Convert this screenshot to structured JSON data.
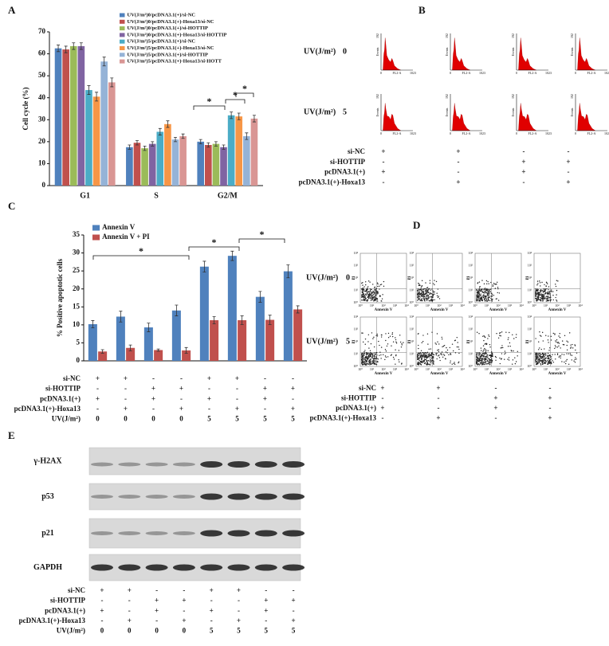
{
  "chart_data": [
    {
      "type": "bar",
      "panel": "A",
      "y_label": "Cell cycle (%)",
      "categories": [
        "G1",
        "S",
        "G2/M"
      ],
      "ylim": [
        0,
        70
      ],
      "yticks": [
        0,
        10,
        20,
        30,
        40,
        50,
        60,
        70
      ],
      "series": [
        {
          "name": "UV(J/m²)0/pcDNA3.1(+)/si-NC",
          "color": "#4f81bd",
          "values": [
            62.5,
            17.5,
            20
          ],
          "errors": [
            1.5,
            1,
            1
          ]
        },
        {
          "name": "UV(J/m²)0/pcDNA3.1(+)-Hoxa13/si-NC",
          "color": "#c0504d",
          "values": [
            62,
            19.5,
            18.5
          ],
          "errors": [
            1.5,
            1,
            1
          ]
        },
        {
          "name": "UV(J/m²)0/pcDNA3.1(+)/si-HOTTIP",
          "color": "#9bbb59",
          "values": [
            63.5,
            17,
            19
          ],
          "errors": [
            1.5,
            1,
            1
          ]
        },
        {
          "name": "UV(J/m²)0/pcDNA3.1(+)-Hoxa13/si-HOTTIP",
          "color": "#8064a2",
          "values": [
            63.5,
            19,
            17.5
          ],
          "errors": [
            1.5,
            1,
            1
          ]
        },
        {
          "name": "UV(J/m²)5/pcDNA3.1(+)/si-NC",
          "color": "#4bacc6",
          "values": [
            43.5,
            24.5,
            32
          ],
          "errors": [
            2,
            1.5,
            1.5
          ]
        },
        {
          "name": "UV(J/m²)5/pcDNA3.1(+)-Hoxa13/si-NC",
          "color": "#f79646",
          "values": [
            40.5,
            28,
            31.5
          ],
          "errors": [
            2,
            1.5,
            1.5
          ]
        },
        {
          "name": "UV(J/m²)5/pcDNA3.1(+)/si-HOTTIP",
          "color": "#95b3d7",
          "values": [
            56.5,
            21,
            22.5
          ],
          "errors": [
            2,
            1,
            1.5
          ]
        },
        {
          "name": "UV(J/m²)5/pcDNA3.1(+)-Hoxa13/si-HOTT",
          "color": "#d99694",
          "values": [
            47,
            22.5,
            30.5
          ],
          "errors": [
            2,
            1,
            1.5
          ]
        }
      ],
      "annotations": [
        "*",
        "*",
        "*"
      ]
    },
    {
      "type": "bar",
      "panel": "C",
      "y_label": "% Positive apoptotic cells",
      "categories": [
        null,
        null,
        null,
        null,
        null,
        null,
        null,
        null
      ],
      "ylim": [
        0,
        35
      ],
      "yticks": [
        0,
        5,
        10,
        15,
        20,
        25,
        30,
        35
      ],
      "series": [
        {
          "name": "Annexin V",
          "color": "#4f81bd",
          "values": [
            10.2,
            12.3,
            9.3,
            14,
            26.2,
            29.2,
            17.8,
            24.9
          ],
          "errors": [
            1,
            1.5,
            1.2,
            1.5,
            1.5,
            1.3,
            1.5,
            1.8
          ]
        },
        {
          "name": "Annexin V + PI",
          "color": "#c0504d",
          "values": [
            2.6,
            3.6,
            3,
            2.9,
            11.3,
            11.3,
            11.4,
            14.3
          ],
          "errors": [
            0.5,
            0.8,
            0.3,
            0.8,
            1,
            1.2,
            1.3,
            1
          ]
        }
      ],
      "annotations": [
        "*",
        "*",
        "*"
      ],
      "conditions": [
        {
          "label": "si-NC",
          "marks": [
            "+",
            "+",
            "-",
            "-",
            "+",
            "+",
            "-",
            "-"
          ]
        },
        {
          "label": "si-HOTTIP",
          "marks": [
            "-",
            "-",
            "+",
            "+",
            "-",
            "-",
            "+",
            "+"
          ]
        },
        {
          "label": "pcDNA3.1(+)",
          "marks": [
            "+",
            "-",
            "+",
            "-",
            "+",
            "-",
            "+",
            "-"
          ]
        },
        {
          "label": "pcDNA3.1(+)-Hoxa13",
          "marks": [
            "-",
            "+",
            "-",
            "+",
            "-",
            "+",
            "-",
            "+"
          ]
        },
        {
          "label": "UV(J/m²)",
          "marks": [
            "0",
            "0",
            "0",
            "0",
            "5",
            "5",
            "5",
            "5"
          ]
        }
      ]
    }
  ],
  "flow_histograms": {
    "panel": "B",
    "uv_label": "UV(J/m²)",
    "uv_doses": [
      "0",
      "5"
    ],
    "y_label": "Events",
    "y_max": "192",
    "x_min": "0",
    "x_label": "FL2-A",
    "x_max": "1023",
    "conditions": [
      {
        "label": "si-NC",
        "marks": [
          "+",
          "+",
          "-",
          "-"
        ]
      },
      {
        "label": "si-HOTTIP",
        "marks": [
          "-",
          "-",
          "+",
          "+"
        ]
      },
      {
        "label": "pcDNA3.1(+)",
        "marks": [
          "+",
          "-",
          "+",
          "-"
        ]
      },
      {
        "label": "pcDNA3.1(+)-Hoxa13",
        "marks": [
          "-",
          "+",
          "-",
          "+"
        ]
      }
    ]
  },
  "scatter_plots": {
    "panel": "D",
    "uv_label": "UV(J/m²)",
    "uv_doses": [
      "0",
      "5"
    ],
    "y_label": "PI",
    "x_label": "Annexin V",
    "ticks": [
      "10⁰",
      "10¹",
      "10²",
      "10³",
      "10⁴"
    ],
    "conditions": [
      {
        "label": "si-NC",
        "marks": [
          "+",
          "+",
          "-",
          "-"
        ]
      },
      {
        "label": "si-HOTTIP",
        "marks": [
          "-",
          "-",
          "+",
          "+"
        ]
      },
      {
        "label": "pcDNA3.1(+)",
        "marks": [
          "+",
          "-",
          "+",
          "-"
        ]
      },
      {
        "label": "pcDNA3.1(+)-Hoxa13",
        "marks": [
          "-",
          "+",
          "-",
          "+"
        ]
      }
    ]
  },
  "western_blot": {
    "panel": "E",
    "proteins": [
      "γ-H2AX",
      "p53",
      "p21",
      "GAPDH"
    ],
    "conditions": [
      {
        "label": "si-NC",
        "marks": [
          "+",
          "+",
          "-",
          "-",
          "+",
          "+",
          "-",
          "-"
        ]
      },
      {
        "label": "si-HOTTIP",
        "marks": [
          "-",
          "-",
          "+",
          "+",
          "-",
          "-",
          "+",
          "+"
        ]
      },
      {
        "label": "pcDNA3.1(+)",
        "marks": [
          "+",
          "-",
          "+",
          "-",
          "+",
          "-",
          "+",
          "-"
        ]
      },
      {
        "label": "pcDNA3.1(+)-Hoxa13",
        "marks": [
          "-",
          "+",
          "-",
          "+",
          "-",
          "+",
          "-",
          "+"
        ]
      },
      {
        "label": "UV(J/m²)",
        "marks": [
          "0",
          "0",
          "0",
          "0",
          "5",
          "5",
          "5",
          "5"
        ]
      }
    ]
  }
}
